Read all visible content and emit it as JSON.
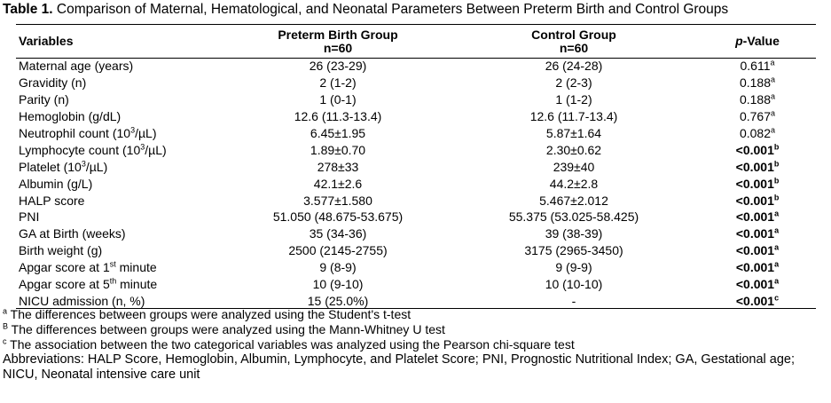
{
  "title": {
    "label": "Table 1.",
    "text": "Comparison of Maternal, Hematological, and Neonatal Parameters Between Preterm Birth and Control Groups"
  },
  "table": {
    "headers": {
      "variables": "Variables",
      "preterm": "Preterm Birth Group",
      "preterm_n": "n=60",
      "control": "Control Group",
      "control_n": "n=60",
      "p_value_italic": "p",
      "p_value_rest": "-Value"
    },
    "rows": [
      {
        "var": "Maternal age (years)",
        "var_sup": "",
        "var_after": "",
        "preterm": "26 (23-29)",
        "control": "26 (24-28)",
        "p": "0.611",
        "p_sup": "a",
        "bold": false
      },
      {
        "var": "Gravidity (n)",
        "var_sup": "",
        "var_after": "",
        "preterm": "2 (1-2)",
        "control": "2 (2-3)",
        "p": "0.188",
        "p_sup": "a",
        "bold": false
      },
      {
        "var": "Parity (n)",
        "var_sup": "",
        "var_after": "",
        "preterm": "1 (0-1)",
        "control": "1 (1-2)",
        "p": "0.188",
        "p_sup": "a",
        "bold": false
      },
      {
        "var": "Hemoglobin (g/dL)",
        "var_sup": "",
        "var_after": "",
        "preterm": "12.6 (11.3-13.4)",
        "control": "12.6 (11.7-13.4)",
        "p": "0.767",
        "p_sup": "a",
        "bold": false
      },
      {
        "var": "Neutrophil count (10",
        "var_sup": "3",
        "var_after": "/µL)",
        "preterm": "6.45±1.95",
        "control": "5.87±1.64",
        "p": "0.082",
        "p_sup": "a",
        "bold": false
      },
      {
        "var": "Lymphocyte count (10",
        "var_sup": "3",
        "var_after": "/µL)",
        "preterm": "1.89±0.70",
        "control": "2.30±0.62",
        "p": "<0.001",
        "p_sup": "b",
        "bold": true
      },
      {
        "var": "Platelet (10",
        "var_sup": "3",
        "var_after": "/µL)",
        "preterm": "278±33",
        "control": "239±40",
        "p": "<0.001",
        "p_sup": "b",
        "bold": true
      },
      {
        "var": "Albumin (g/L)",
        "var_sup": "",
        "var_after": "",
        "preterm": "42.1±2.6",
        "control": "44.2±2.8",
        "p": "<0.001",
        "p_sup": "b",
        "bold": true
      },
      {
        "var": "HALP score",
        "var_sup": "",
        "var_after": "",
        "preterm": "3.577±1.580",
        "control": "5.467±2.012",
        "p": "<0.001",
        "p_sup": "b",
        "bold": true
      },
      {
        "var": "PNI",
        "var_sup": "",
        "var_after": "",
        "preterm": "51.050 (48.675-53.675)",
        "control": "55.375 (53.025-58.425)",
        "p": "<0.001",
        "p_sup": "a",
        "bold": true
      },
      {
        "var": "GA at Birth (weeks)",
        "var_sup": "",
        "var_after": "",
        "preterm": "35 (34-36)",
        "control": "39 (38-39)",
        "p": "<0.001",
        "p_sup": "a",
        "bold": true
      },
      {
        "var": "Birth weight (g)",
        "var_sup": "",
        "var_after": "",
        "preterm": "2500 (2145-2755)",
        "control": "3175 (2965-3450)",
        "p": "<0.001",
        "p_sup": "a",
        "bold": true
      },
      {
        "var": "Apgar score at 1",
        "var_sup": "st",
        "var_after": " minute",
        "preterm": "9 (8-9)",
        "control": "9 (9-9)",
        "p": "<0.001",
        "p_sup": "a",
        "bold": true
      },
      {
        "var": "Apgar score at 5",
        "var_sup": "th",
        "var_after": " minute",
        "preterm": "10 (9-10)",
        "control": "10 (10-10)",
        "p": "<0.001",
        "p_sup": "a",
        "bold": true
      },
      {
        "var": "NICU admission (n, %)",
        "var_sup": "",
        "var_after": "",
        "preterm": "15 (25.0%)",
        "control": "-",
        "p": "<0.001",
        "p_sup": "c",
        "bold": true
      }
    ]
  },
  "footnotes": [
    {
      "mark": "a",
      "text": " The differences between groups were analyzed using the Student's t-test"
    },
    {
      "mark": "B",
      "text": " The differences between groups were analyzed using the Mann-Whitney U test"
    },
    {
      "mark": "c",
      "text": " The association between the two categorical variables was analyzed using the Pearson chi-square test"
    }
  ],
  "abbreviations": "Abbreviations: HALP Score, Hemoglobin, Albumin, Lymphocyte, and Platelet Score; PNI, Prognostic Nutritional Index; GA, Gestational age; NICU, Neonatal intensive care unit"
}
